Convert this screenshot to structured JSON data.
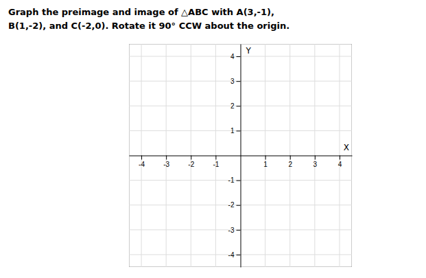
{
  "chart_data": {
    "type": "plane",
    "title": "Graph the preimage and image of △ABC with A(3,-1),",
    "subtitle": "B(1,-2), and C(-2,0). Rotate it 90° CCW about the origin.",
    "xlabel": "X",
    "ylabel": "Y",
    "xlim": [
      -4.5,
      4.5
    ],
    "ylim": [
      -4.5,
      4.5
    ],
    "xticks": [
      -4,
      -3,
      -2,
      -1,
      1,
      2,
      3,
      4
    ],
    "yticks": [
      -4,
      -3,
      -2,
      -1,
      1,
      2,
      3,
      4
    ],
    "grid": true
  }
}
